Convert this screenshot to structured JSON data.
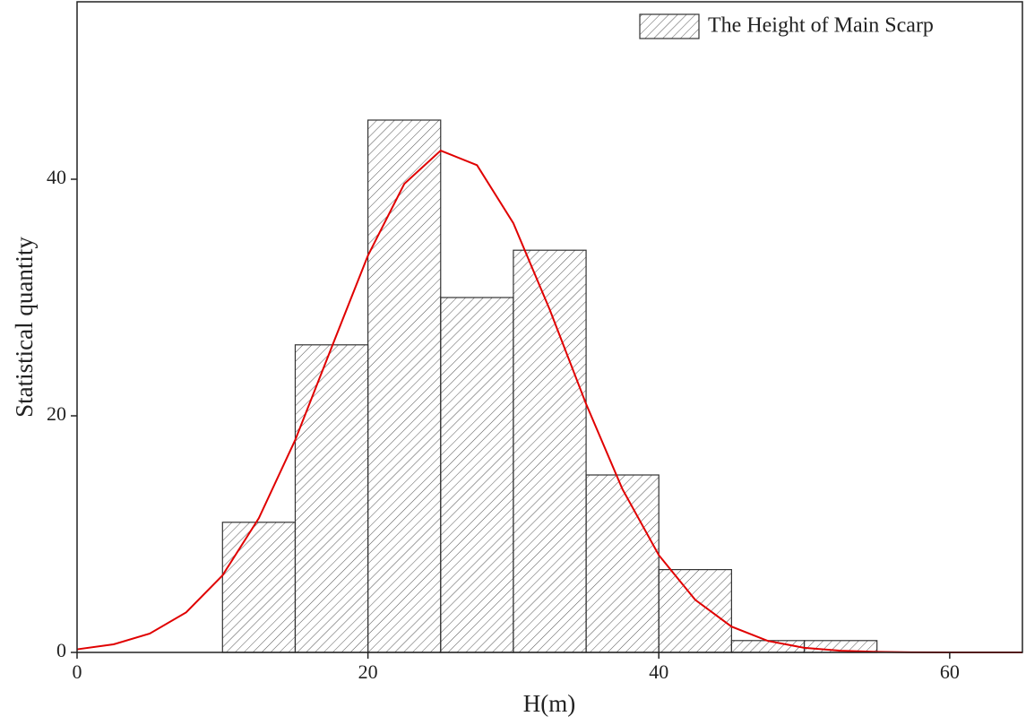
{
  "chart_data": {
    "type": "histogram",
    "x_label": "H(m)",
    "y_label": "Statistical quantity",
    "bins": [
      10,
      15,
      20,
      25,
      30,
      35,
      40,
      45,
      50,
      55
    ],
    "series": [
      {
        "name": "The Height of Main Scarp",
        "color": "#333333",
        "values": [
          11,
          26,
          45,
          30,
          34,
          15,
          7,
          1,
          1
        ]
      }
    ],
    "curve": {
      "color": "#e00000",
      "x": [
        0,
        2.5,
        5,
        7.5,
        10,
        12.5,
        15,
        17.5,
        20,
        22.5,
        25,
        27.5,
        30,
        32.5,
        35,
        37.5,
        40,
        42.5,
        45,
        47.5,
        50,
        52.5,
        55,
        57.5,
        60,
        62.5,
        65
      ],
      "values": [
        0.26,
        0.68,
        1.59,
        3.38,
        6.51,
        11.35,
        17.96,
        25.78,
        33.55,
        39.61,
        42.42,
        41.19,
        36.28,
        28.98,
        21.0,
        13.8,
        8.22,
        4.45,
        2.18,
        0.97,
        0.39,
        0.14,
        0.05,
        0.01,
        0,
        0,
        0
      ]
    },
    "xlim": [
      0,
      65
    ],
    "ylim": [
      0,
      55
    ],
    "xticks": [
      0,
      20,
      40,
      60
    ],
    "yticks": [
      0,
      20,
      40
    ],
    "legend": "top-right"
  }
}
